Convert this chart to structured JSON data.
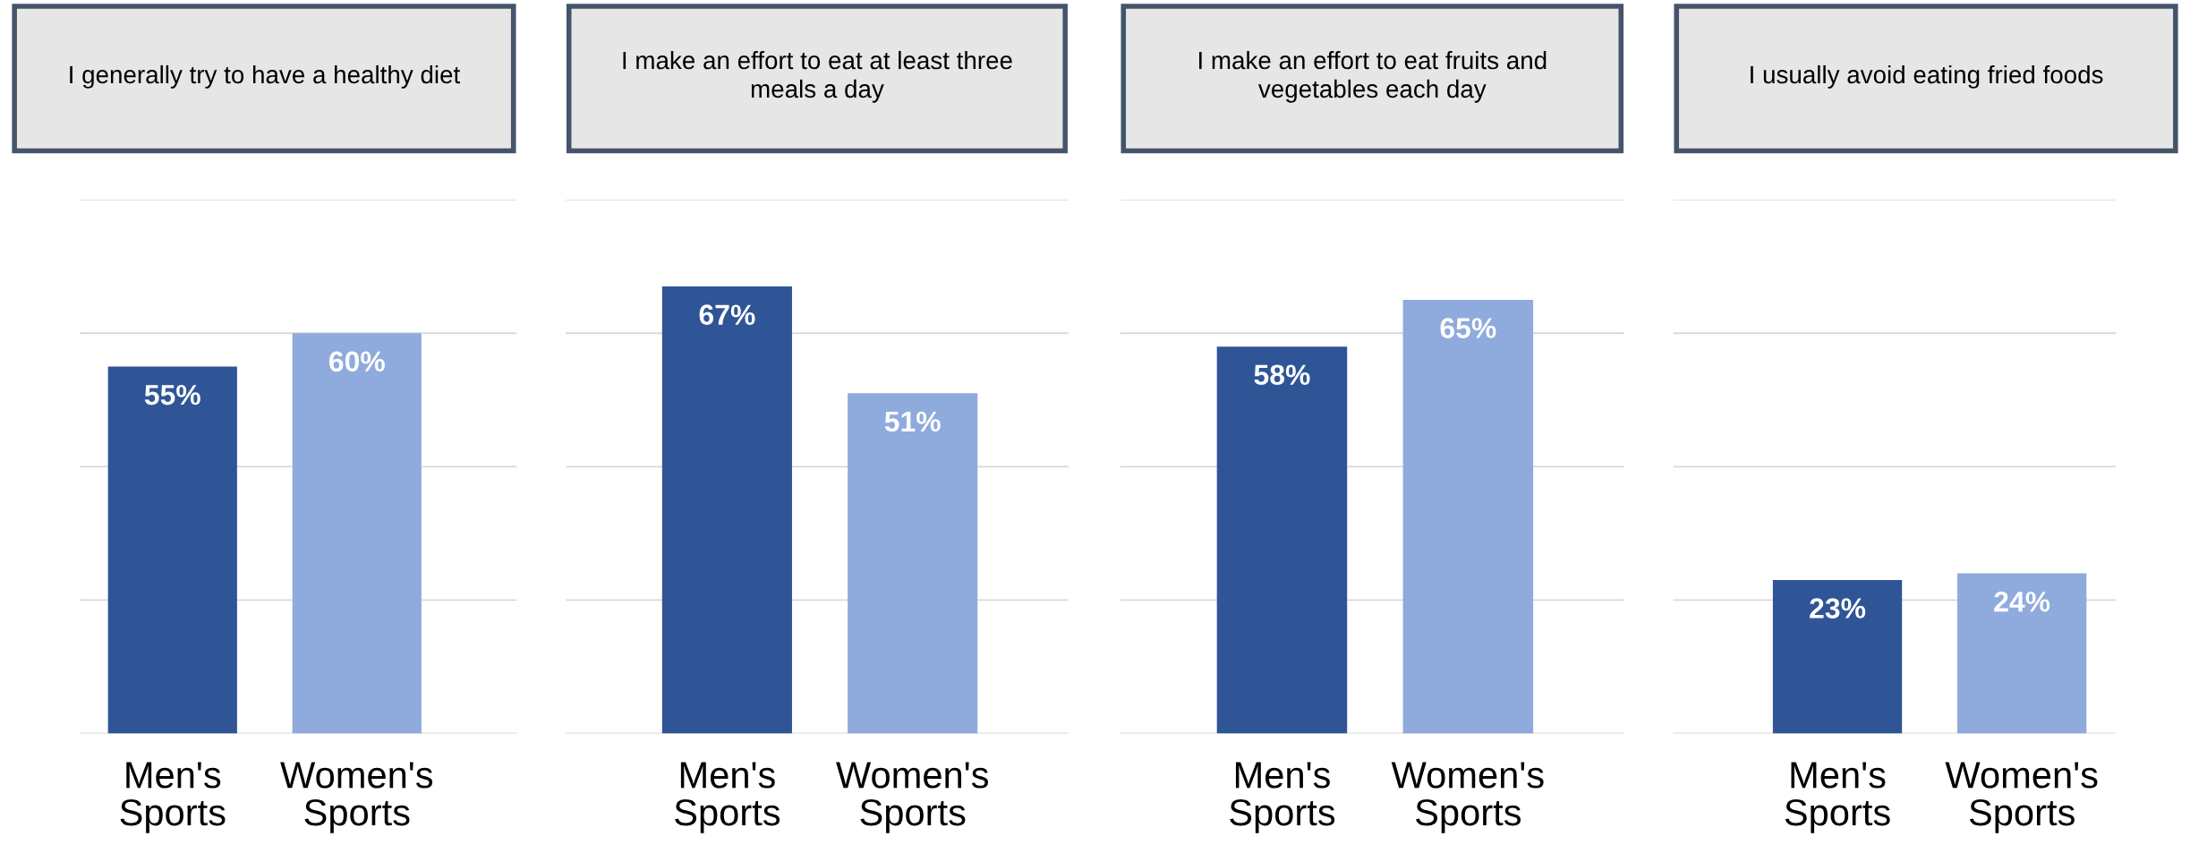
{
  "chart_data": [
    {
      "type": "bar",
      "title": "I generally try to have a healthy diet",
      "categories": [
        "Men's Sports",
        "Women's Sports"
      ],
      "values": [
        55,
        60
      ],
      "colors": [
        "#2f5597",
        "#8faadc"
      ],
      "value_labels": [
        "55%",
        "60%"
      ],
      "ylim": [
        0,
        80
      ],
      "yticks": [
        {
          "value": 0,
          "label": null
        },
        {
          "value": 20,
          "label": null
        },
        {
          "value": 40,
          "label": null
        },
        {
          "value": 60,
          "label": null
        },
        {
          "value": 80,
          "label": null
        }
      ],
      "grid": "y",
      "tick_labels": "x"
    },
    {
      "type": "bar",
      "title": "I make an effort to eat at least three meals a day",
      "categories": [
        "Men's Sports",
        "Women's Sports"
      ],
      "values": [
        67,
        51
      ],
      "colors": [
        "#2f5597",
        "#8faadc"
      ],
      "value_labels": [
        "67%",
        "51%"
      ],
      "ylim": [
        0,
        80
      ],
      "yticks": [
        {
          "value": 0,
          "label": null
        },
        {
          "value": 20,
          "label": null
        },
        {
          "value": 40,
          "label": null
        },
        {
          "value": 60,
          "label": null
        },
        {
          "value": 80,
          "label": null
        }
      ],
      "grid": "y",
      "tick_labels": "x"
    },
    {
      "type": "bar",
      "title": "I make an effort to eat fruits and vegetables each day",
      "categories": [
        "Men's Sports",
        "Women's Sports"
      ],
      "values": [
        58,
        65
      ],
      "colors": [
        "#2f5597",
        "#8faadc"
      ],
      "value_labels": [
        "58%",
        "65%"
      ],
      "ylim": [
        0,
        80
      ],
      "yticks": [
        {
          "value": 0,
          "label": null
        },
        {
          "value": 20,
          "label": null
        },
        {
          "value": 40,
          "label": null
        },
        {
          "value": 60,
          "label": null
        },
        {
          "value": 80,
          "label": null
        }
      ],
      "grid": "y",
      "tick_labels": "x"
    },
    {
      "type": "bar",
      "title": "I usually avoid eating fried foods",
      "categories": [
        "Men's Sports",
        "Women's Sports"
      ],
      "values": [
        23,
        24
      ],
      "colors": [
        "#2f5597",
        "#8faadc"
      ],
      "value_labels": [
        "23%",
        "24%"
      ],
      "ylim": [
        0,
        80
      ],
      "yticks": [
        {
          "value": 0,
          "label": null
        },
        {
          "value": 20,
          "label": null
        },
        {
          "value": 40,
          "label": null
        },
        {
          "value": 60,
          "label": null
        },
        {
          "value": 80,
          "label": null
        }
      ],
      "grid": "y",
      "tick_labels": "x"
    }
  ]
}
